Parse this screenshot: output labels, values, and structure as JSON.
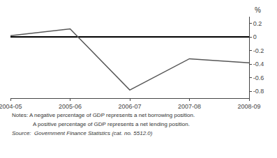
{
  "chart_data": {
    "type": "line",
    "categories": [
      "2004-05",
      "2005-06",
      "2006-07",
      "2007-08",
      "2008-09"
    ],
    "values": [
      0.02,
      0.12,
      -0.78,
      -0.32,
      -0.38
    ],
    "color": "#555555",
    "ylim": [
      -0.9,
      0.3
    ],
    "yticks": [
      0.2,
      0,
      -0.2,
      -0.4,
      -0.6,
      -0.8
    ],
    "ylabel": "%",
    "grid": false,
    "annotations": [
      "Notes: A negative percentage of GDP represents a net borrowing position.",
      "A positive percentage of GDP represents a net lending position.",
      "Source:  Government Finance Statistics (cat. no. 5512.0)"
    ]
  }
}
